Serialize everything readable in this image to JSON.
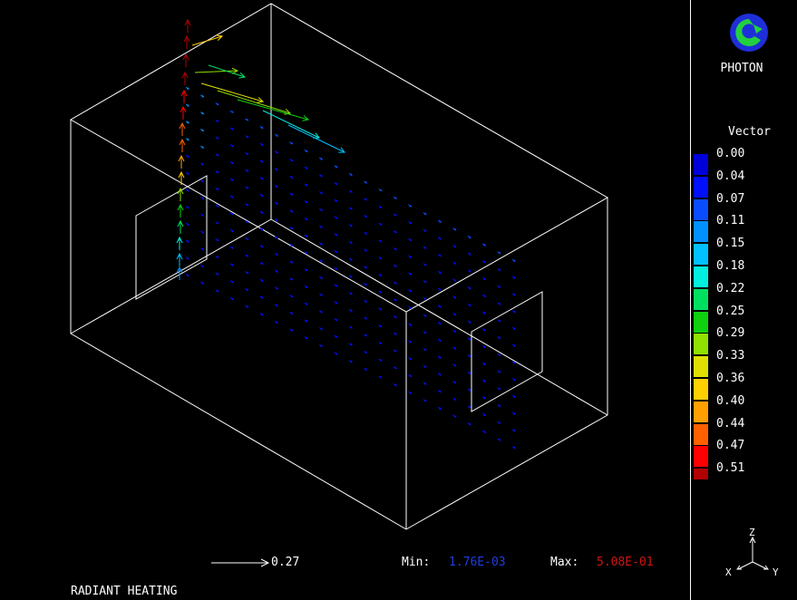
{
  "app": {
    "brand": "PHOTON"
  },
  "model": {
    "title": "RADIANT HEATING"
  },
  "legend": {
    "title": "Vector",
    "items": [
      {
        "value": "0.00",
        "color": "#0000d8"
      },
      {
        "value": "0.04",
        "color": "#0010ff"
      },
      {
        "value": "0.07",
        "color": "#0a4cff"
      },
      {
        "value": "0.11",
        "color": "#0090ff"
      },
      {
        "value": "0.15",
        "color": "#00c0ff"
      },
      {
        "value": "0.18",
        "color": "#00f0e0"
      },
      {
        "value": "0.22",
        "color": "#00e060"
      },
      {
        "value": "0.25",
        "color": "#10d010"
      },
      {
        "value": "0.29",
        "color": "#90e000"
      },
      {
        "value": "0.33",
        "color": "#e0e000"
      },
      {
        "value": "0.36",
        "color": "#ffd000"
      },
      {
        "value": "0.40",
        "color": "#ffa000"
      },
      {
        "value": "0.44",
        "color": "#ff6000"
      },
      {
        "value": "0.47",
        "color": "#ff0000"
      },
      {
        "value": "0.51",
        "color": "#b00000"
      }
    ]
  },
  "reference_vector": {
    "value": "0.27"
  },
  "range": {
    "min_label": "Min:",
    "min_value": "1.76E-03",
    "max_label": "Max:",
    "max_value": "5.08E-01"
  },
  "axes": {
    "x": "X",
    "y": "Y",
    "z": "Z"
  }
}
